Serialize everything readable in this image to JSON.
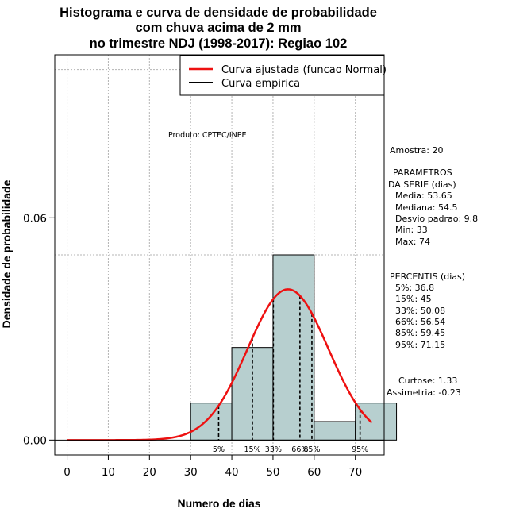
{
  "chart_data": {
    "type": "histogram",
    "title_lines": [
      "Histograma e curva de densidade de probabilidade",
      "com chuva acima de 2 mm",
      "no trimestre NDJ (1998-2017): Regiao 102"
    ],
    "xlabel": "Numero de dias",
    "ylabel": "Densidade de probabilidade",
    "xlim": [
      -3,
      77
    ],
    "ylim": [
      -0.004,
      0.104
    ],
    "x_ticks": [
      0,
      10,
      20,
      30,
      40,
      50,
      60,
      70
    ],
    "y_ticks": [
      0.0,
      0.06
    ],
    "y_tick_labels": [
      "0.00",
      "0.06"
    ],
    "grid": true,
    "bins": [
      {
        "x0": 30,
        "x1": 40,
        "density": 0.01
      },
      {
        "x0": 40,
        "x1": 50,
        "density": 0.025
      },
      {
        "x0": 50,
        "x1": 60,
        "density": 0.05
      },
      {
        "x0": 60,
        "x1": 70,
        "density": 0.005
      },
      {
        "x0": 70,
        "x1": 80,
        "density": 0.01
      }
    ],
    "fitted_curve": {
      "name": "Curva ajustada (funcao Normal)",
      "mean": 53.65,
      "sd": 9.8,
      "x_range": [
        0,
        74
      ],
      "color": "#ee1111"
    },
    "empirical_curve": {
      "name": "Curva empirica",
      "color": "#000000"
    },
    "percentiles": [
      {
        "label": "5%",
        "value": 36.8
      },
      {
        "label": "15%",
        "value": 45
      },
      {
        "label": "33%",
        "value": 50.08
      },
      {
        "label": "66%",
        "value": 56.54
      },
      {
        "label": "85%",
        "value": 59.45
      },
      {
        "label": "95%",
        "value": 71.15
      }
    ],
    "legend_position": "top-right",
    "annotation": "Produto: CPTEC/INPE",
    "colors": {
      "bar_fill": "#b7cfcf",
      "curve": "#ee1111",
      "grid": "#b4b4b4"
    }
  },
  "stats": {
    "amostra": "Amostra: 20",
    "param_title_1": "PARAMETROS",
    "param_title_2": "DA SERIE (dias)",
    "media": "Media: 53.65",
    "mediana": "Mediana: 54.5",
    "desvio": "Desvio padrao: 9.8",
    "min": "Min: 33",
    "max": "Max: 74",
    "percentis_title": "PERCENTIS (dias)",
    "p5": "5%: 36.8",
    "p15": "15%: 45",
    "p33": "33%: 50.08",
    "p66": "66%: 56.54",
    "p85": "85%: 59.45",
    "p95": "95%: 71.15",
    "curtose": "Curtose: 1.33",
    "assimetria": "Assimetria: -0.23"
  }
}
